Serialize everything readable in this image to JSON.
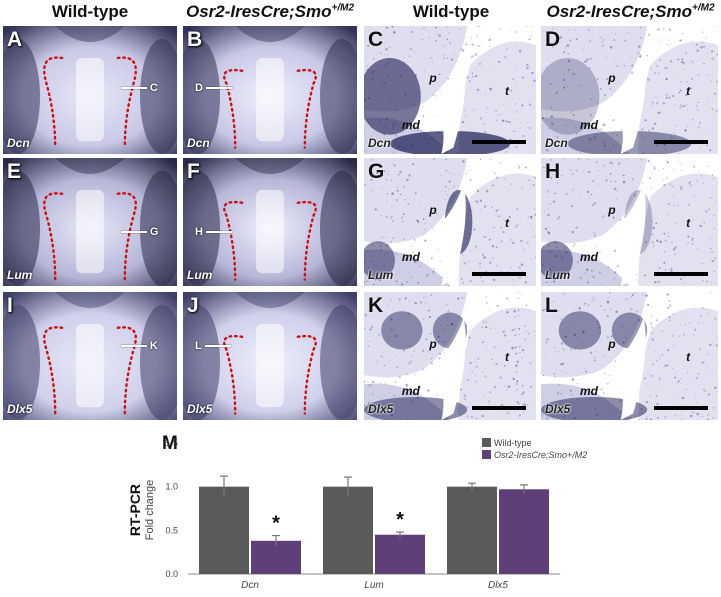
{
  "headers": {
    "wt_left": "Wild-type",
    "mut_left": "Osr2-IresCre;Smo",
    "mut_left_sup": "+/M2",
    "wt_right": "Wild-type",
    "mut_right": "Osr2-IresCre;Smo",
    "mut_right_sup": "+/M2"
  },
  "panels": [
    {
      "letter": "A",
      "gene": "Dcn",
      "pointer": "C"
    },
    {
      "letter": "B",
      "gene": "Dcn",
      "pointer": "D"
    },
    {
      "letter": "C",
      "gene": "Dcn",
      "p": "p",
      "t": "t",
      "md": "md"
    },
    {
      "letter": "D",
      "gene": "Dcn",
      "p": "p",
      "t": "t",
      "md": "md"
    },
    {
      "letter": "E",
      "gene": "Lum",
      "pointer": "G"
    },
    {
      "letter": "F",
      "gene": "Lum",
      "pointer": "H"
    },
    {
      "letter": "G",
      "gene": "Lum",
      "p": "p",
      "t": "t",
      "md": "md"
    },
    {
      "letter": "H",
      "gene": "Lum",
      "p": "p",
      "t": "t",
      "md": "md"
    },
    {
      "letter": "I",
      "gene": "Dlx5",
      "pointer": "K"
    },
    {
      "letter": "J",
      "gene": "Dlx5",
      "pointer": "L"
    },
    {
      "letter": "K",
      "gene": "Dlx5",
      "p": "p",
      "t": "t",
      "md": "md"
    },
    {
      "letter": "L",
      "gene": "Dlx5",
      "p": "p",
      "t": "t",
      "md": "md"
    }
  ],
  "chart_label": "M",
  "chart_data": {
    "type": "bar",
    "ylabel_main": "RT-PCR",
    "ylabel_sub": "Fold change",
    "categories": [
      "Dcn",
      "Lum",
      "Dlx5"
    ],
    "ylim": [
      0,
      1.5
    ],
    "yticks": [
      "0.0",
      "0.5",
      "1.0",
      "1.5"
    ],
    "series": [
      {
        "name": "Wild-type",
        "color": "#5a5a5a",
        "values": [
          1.0,
          1.0,
          1.0
        ],
        "errors": [
          0.12,
          0.11,
          0.04
        ]
      },
      {
        "name": "Osr2-IresCre;Smo+/M2",
        "color": "#5e3f78",
        "values": [
          0.38,
          0.45,
          0.97
        ],
        "errors": [
          0.06,
          0.03,
          0.05
        ]
      }
    ],
    "significance": [
      "*",
      "*",
      ""
    ],
    "legend_position": "top-right"
  }
}
